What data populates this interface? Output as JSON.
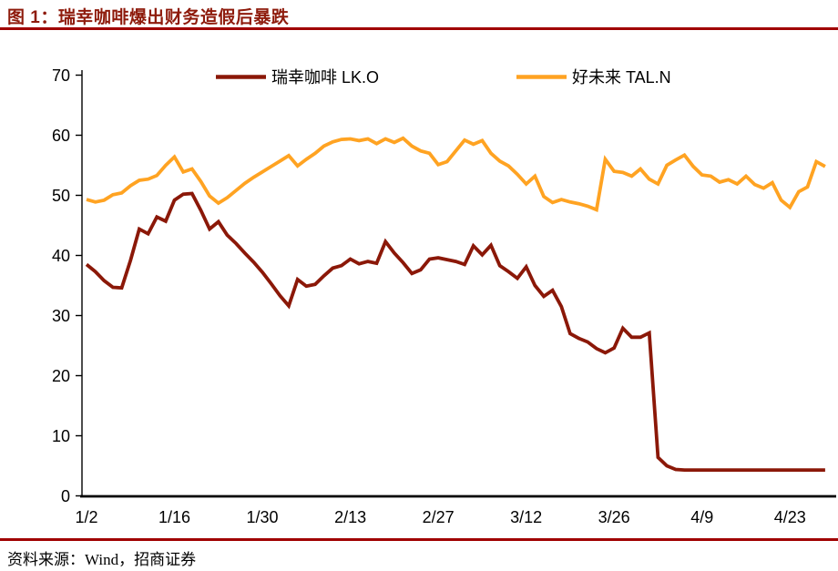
{
  "header": {
    "title": "图 1：瑞幸咖啡爆出财务造假后暴跌"
  },
  "footer": {
    "source": "资料来源：Wind，招商证券"
  },
  "colors": {
    "title": "#8E1B0C",
    "rule": "#A00000",
    "axis": "#000000",
    "luckin_line": "#8B1808",
    "tal_line": "#FFA322"
  },
  "chart_data": {
    "type": "line",
    "title": "瑞幸咖啡爆出财务造假后暴跌",
    "xlabel": "",
    "ylabel": "",
    "ylim": [
      0,
      70
    ],
    "y_ticks": [
      0,
      10,
      20,
      30,
      40,
      50,
      60,
      70
    ],
    "x_tick_labels": [
      "1/2",
      "1/16",
      "1/30",
      "2/13",
      "2/27",
      "3/12",
      "3/26",
      "4/9",
      "4/23"
    ],
    "x_tick_indices": [
      0,
      10,
      20,
      30,
      40,
      50,
      60,
      70,
      80
    ],
    "grid": false,
    "legend_position": "top",
    "series": [
      {
        "id": "luckin",
        "name": "瑞幸咖啡 LK.O",
        "color": "#8B1808",
        "values": [
          38.5,
          37.3,
          35.8,
          34.7,
          34.6,
          39.2,
          44.4,
          43.6,
          46.4,
          45.7,
          49.2,
          50.2,
          50.3,
          47.5,
          44.4,
          45.6,
          43.4,
          42.0,
          40.4,
          38.9,
          37.2,
          35.3,
          33.3,
          31.6,
          36.0,
          34.9,
          35.2,
          36.6,
          37.9,
          38.3,
          39.4,
          38.6,
          39.0,
          38.7,
          42.3,
          40.4,
          38.8,
          37.0,
          37.6,
          39.4,
          39.6,
          39.3,
          39.0,
          38.5,
          41.6,
          40.1,
          41.7,
          38.3,
          37.3,
          36.2,
          38.1,
          35.0,
          33.2,
          34.2,
          31.5,
          27.0,
          26.2,
          25.6,
          24.5,
          23.8,
          24.6,
          27.9,
          26.4,
          26.4,
          27.1,
          6.4,
          5.0,
          4.4,
          4.3,
          4.3,
          4.3,
          4.3,
          4.3,
          4.3,
          4.3,
          4.3,
          4.3,
          4.3,
          4.3,
          4.3,
          4.3,
          4.3,
          4.3,
          4.3,
          4.3
        ]
      },
      {
        "id": "tal",
        "name": "好未来 TAL.N",
        "color": "#FFA322",
        "values": [
          49.3,
          48.9,
          49.2,
          50.1,
          50.4,
          51.6,
          52.5,
          52.7,
          53.3,
          55.0,
          56.4,
          53.9,
          54.4,
          52.3,
          49.9,
          48.7,
          49.6,
          50.8,
          52.0,
          53.0,
          53.9,
          54.8,
          55.7,
          56.6,
          54.9,
          56.0,
          57.0,
          58.2,
          58.9,
          59.3,
          59.4,
          59.1,
          59.4,
          58.6,
          59.4,
          58.8,
          59.5,
          58.2,
          57.4,
          57.0,
          55.1,
          55.6,
          57.4,
          59.2,
          58.5,
          59.1,
          57.0,
          55.7,
          54.9,
          53.5,
          51.9,
          53.2,
          49.8,
          48.8,
          49.3,
          48.9,
          48.6,
          48.2,
          47.6,
          56.0,
          54.0,
          53.8,
          53.2,
          54.4,
          52.7,
          51.9,
          55.0,
          55.9,
          56.7,
          54.8,
          53.4,
          53.2,
          52.2,
          52.6,
          51.9,
          53.2,
          51.8,
          51.2,
          52.1,
          49.2,
          48.0,
          50.6,
          51.4,
          55.6,
          54.8
        ]
      }
    ]
  }
}
